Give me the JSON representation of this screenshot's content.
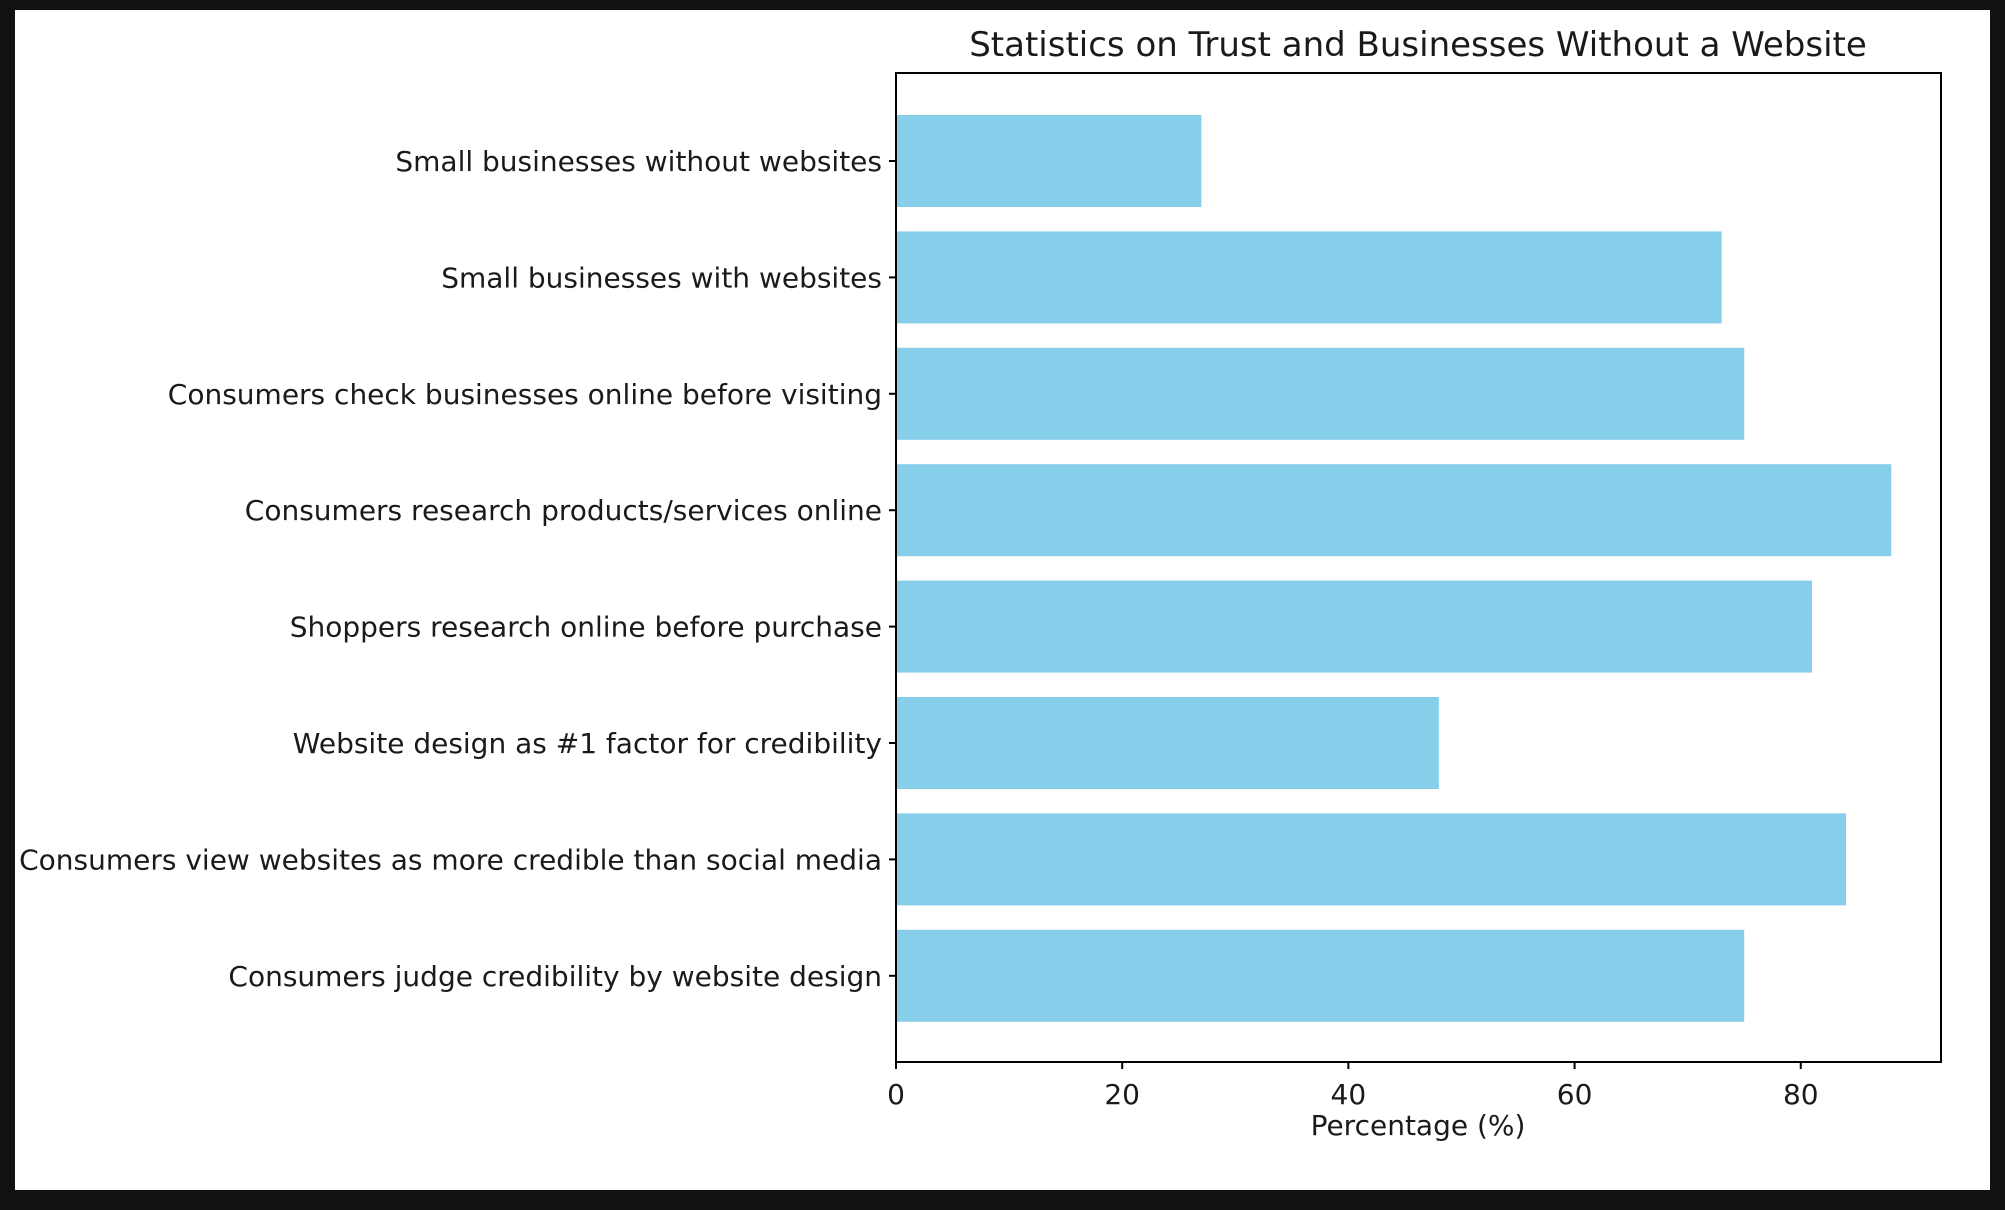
{
  "chart_data": {
    "type": "bar",
    "orientation": "horizontal",
    "title": "Statistics on Trust and Businesses Without a Website",
    "xlabel": "Percentage (%)",
    "ylabel": "",
    "xlim": [
      0,
      92.4
    ],
    "xticks": [
      "0",
      "20",
      "40",
      "60",
      "80"
    ],
    "categories": [
      "Small businesses without websites",
      "Small businesses with websites",
      "Consumers check businesses online before visiting",
      "Consumers research products/services online",
      "Shoppers research online before purchase",
      "Website design as #1 factor for credibility",
      "Consumers view websites as more credible than social media",
      "Consumers judge credibility by website design"
    ],
    "values": [
      27,
      73,
      75,
      88,
      81,
      48,
      84,
      75
    ],
    "bar_color": "#87CEEB",
    "grid": false,
    "legend": "none"
  }
}
